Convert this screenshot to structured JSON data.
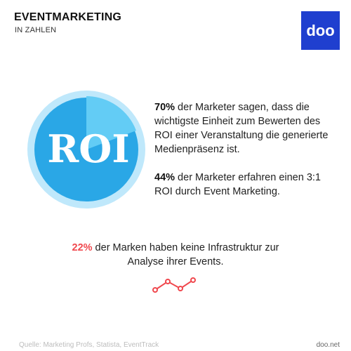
{
  "header": {
    "title": "EVENTMARKETING",
    "subtitle": "IN ZAHLEN"
  },
  "logo": {
    "text": "doo"
  },
  "graphic": {
    "label": "ROI",
    "icon": "roi-pie-icon"
  },
  "stats": [
    {
      "value": "70%",
      "text": " der Marketer sagen, dass die wichtigste Einheit zum Bewerten des ROI einer Veranstaltung die generierte Medienpräsenz ist."
    },
    {
      "value": "44%",
      "text": " der Marketer erfahren einen 3:1 ROI durch Event Marketing."
    },
    {
      "value": "22%",
      "text": " der Marken haben keine Infrastruktur zur Analyse ihrer Events."
    }
  ],
  "icons": {
    "trend": "trend-line-icon"
  },
  "footer": {
    "source": "Quelle: Marketing Profs, Statista, EventTrack",
    "site": "doo.net"
  },
  "colors": {
    "brand": "#1f3fcf",
    "pie_main": "#2aa7e6",
    "pie_slice": "#63ccf5",
    "highlight": "#f0484e"
  }
}
